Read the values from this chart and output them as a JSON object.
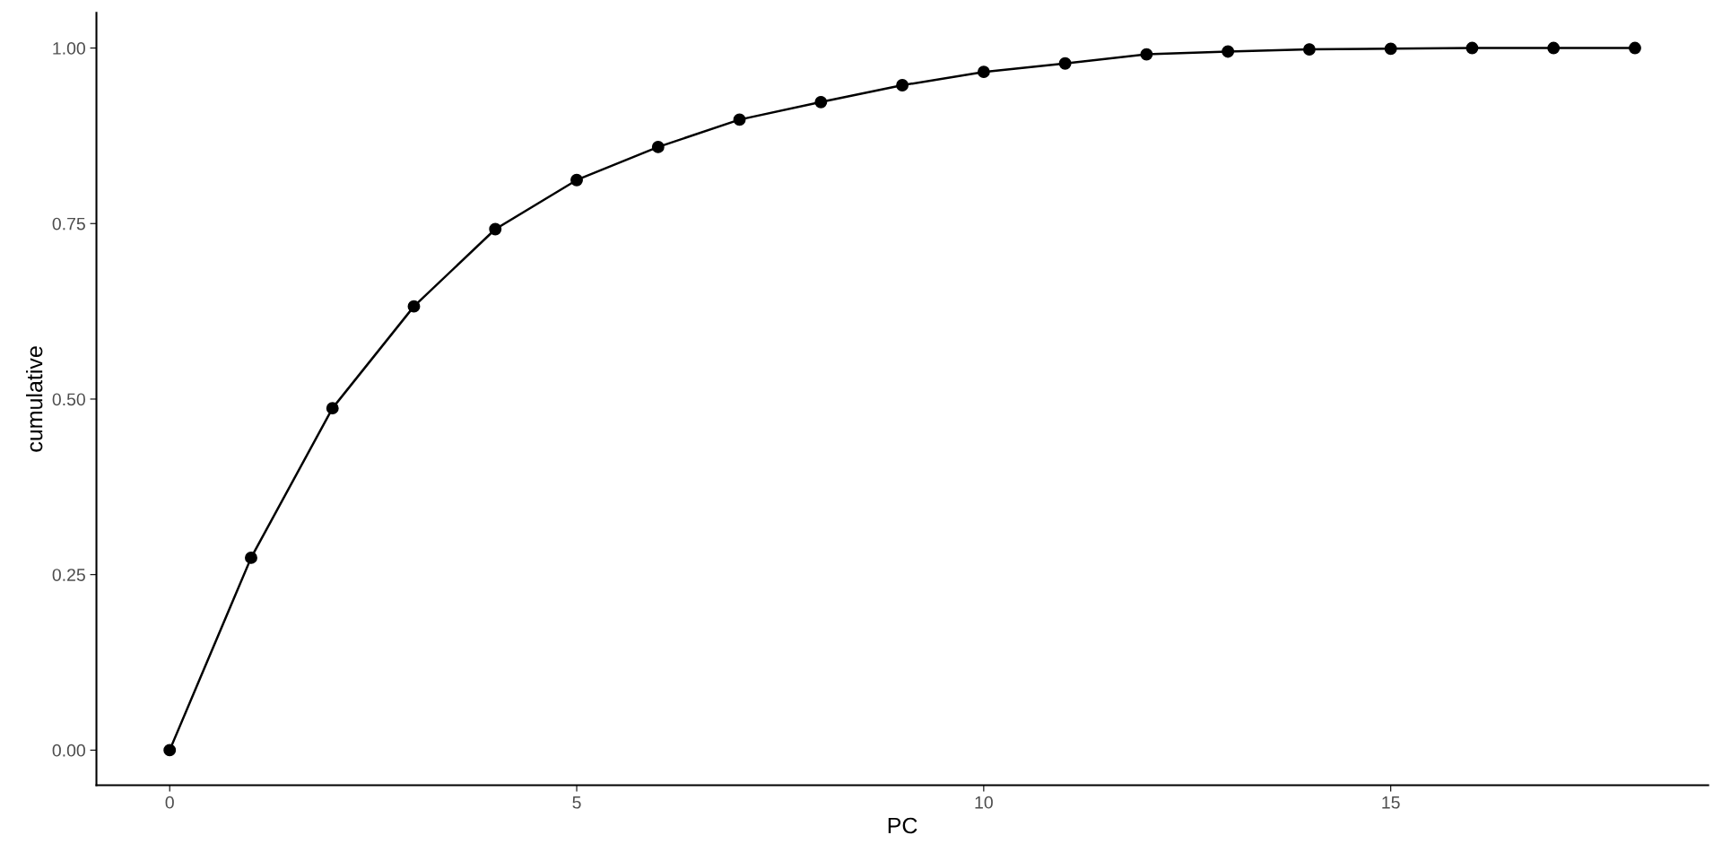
{
  "chart_data": {
    "type": "line",
    "xlabel": "PC",
    "ylabel": "cumulative",
    "x": [
      0,
      1,
      2,
      3,
      4,
      5,
      6,
      7,
      8,
      9,
      10,
      11,
      12,
      13,
      14,
      15,
      16,
      17,
      18
    ],
    "series": [
      {
        "color": "#000000",
        "values": [
          0,
          0.274,
          0.487,
          0.632,
          0.742,
          0.812,
          0.859,
          0.898,
          0.923,
          0.947,
          0.966,
          0.978,
          0.991,
          0.995,
          0.998,
          0.999,
          1.0,
          1.0,
          1.0
        ]
      }
    ],
    "xlim": [
      -0.9,
      18.9
    ],
    "ylim": [
      -0.05,
      1.05
    ],
    "xticks": [
      0,
      5,
      10,
      15
    ],
    "yticks": [
      {
        "value": 0,
        "label": "0.00"
      },
      {
        "value": 0.25,
        "label": "0.25"
      },
      {
        "value": 0.5,
        "label": "0.50"
      },
      {
        "value": 0.75,
        "label": "0.75"
      },
      {
        "value": 1,
        "label": "1.00"
      }
    ],
    "grid": false,
    "legend": false,
    "marker": "circle",
    "line_style": "solid"
  }
}
